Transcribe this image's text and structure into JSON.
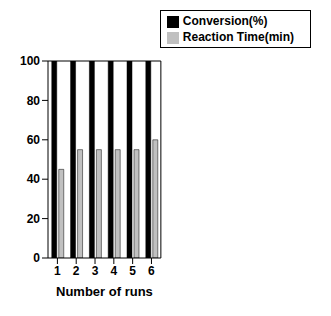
{
  "chart_data": {
    "type": "bar",
    "categories": [
      "1",
      "2",
      "3",
      "4",
      "5",
      "6"
    ],
    "x_label": "Number of runs",
    "series": [
      {
        "name": "Conversion(%)",
        "color": "#000000",
        "values": [
          100,
          100,
          100,
          100,
          100,
          100
        ]
      },
      {
        "name": "Reaction Time(min)",
        "color": "#c0c0c0",
        "values": [
          45,
          55,
          55,
          55,
          55,
          60
        ]
      }
    ],
    "ylim": [
      0,
      100
    ],
    "yticks": [
      0,
      20,
      40,
      60,
      80,
      100
    ],
    "grid": false,
    "legend": "top right"
  }
}
